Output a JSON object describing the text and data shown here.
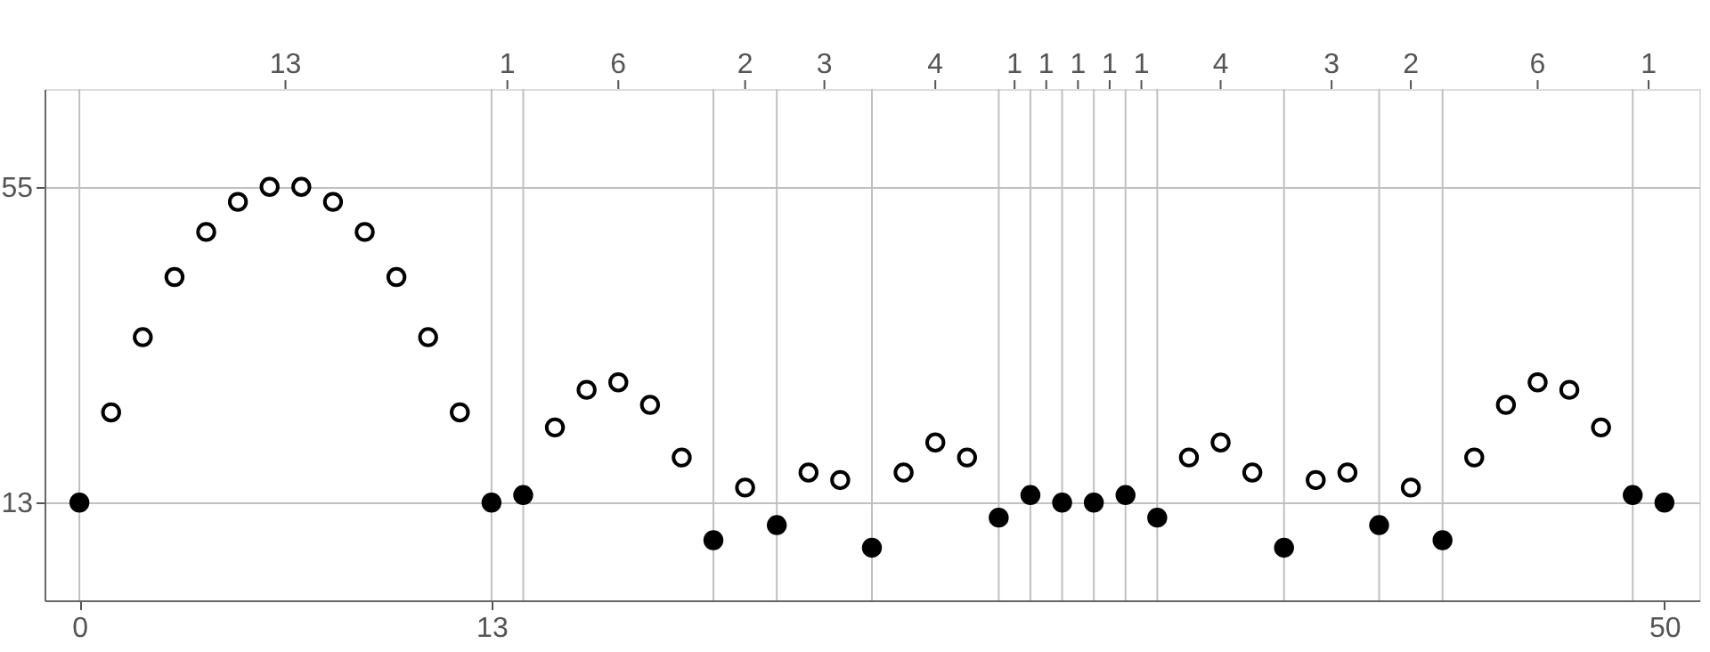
{
  "chart_data": {
    "type": "scatter",
    "series": [
      {
        "color": "#ffffff",
        "x": [
          1,
          2,
          3,
          4,
          5,
          6,
          7,
          8,
          9,
          10,
          11,
          12,
          15,
          16,
          17,
          18,
          19,
          21,
          23,
          24,
          26,
          27,
          28,
          35,
          36,
          37,
          39,
          40,
          42,
          44,
          45,
          46,
          47,
          48
        ],
        "values": [
          25,
          35,
          43,
          49,
          53,
          55,
          55,
          53,
          49,
          43,
          35,
          25,
          23,
          28,
          29,
          26,
          19,
          15,
          17,
          16,
          17,
          21,
          19,
          19,
          21,
          17,
          16,
          17,
          15,
          19,
          26,
          29,
          28,
          23
        ]
      },
      {
        "color": "#000000",
        "x": [
          0,
          13,
          14,
          20,
          22,
          25,
          29,
          30,
          31,
          32,
          33,
          34,
          38,
          41,
          43,
          49,
          50
        ],
        "values": [
          13,
          13,
          14,
          8,
          10,
          7,
          11,
          14,
          13,
          13,
          14,
          11,
          7,
          10,
          8,
          14,
          13
        ]
      }
    ],
    "marker": "circle",
    "xlim": [
      -1.1,
      51.1
    ],
    "ylim": [
      0,
      68
    ],
    "xticks": [
      0,
      13,
      50
    ],
    "yticks": [
      13,
      55
    ],
    "annotations": [
      "13",
      "1",
      "6",
      "2",
      "3",
      "4",
      "1",
      "1",
      "1",
      "1",
      "1",
      "4",
      "3",
      "2",
      "6",
      "1"
    ],
    "grid": "y",
    "ref_lines": [
      {
        "axis": "x",
        "value": 0,
        "color": "#c0c0c0"
      },
      {
        "axis": "x",
        "value": 13,
        "color": "#c0c0c0"
      },
      {
        "axis": "x",
        "value": 14,
        "color": "#c0c0c0"
      },
      {
        "axis": "x",
        "value": 20,
        "color": "#c0c0c0"
      },
      {
        "axis": "x",
        "value": 22,
        "color": "#c0c0c0"
      },
      {
        "axis": "x",
        "value": 25,
        "color": "#c0c0c0"
      },
      {
        "axis": "x",
        "value": 29,
        "color": "#c0c0c0"
      },
      {
        "axis": "x",
        "value": 30,
        "color": "#c0c0c0"
      },
      {
        "axis": "x",
        "value": 31,
        "color": "#c0c0c0"
      },
      {
        "axis": "x",
        "value": 32,
        "color": "#c0c0c0"
      },
      {
        "axis": "x",
        "value": 33,
        "color": "#c0c0c0"
      },
      {
        "axis": "x",
        "value": 34,
        "color": "#c0c0c0"
      },
      {
        "axis": "x",
        "value": 38,
        "color": "#c0c0c0"
      },
      {
        "axis": "x",
        "value": 41,
        "color": "#c0c0c0"
      },
      {
        "axis": "x",
        "value": 43,
        "color": "#c0c0c0"
      },
      {
        "axis": "x",
        "value": 49,
        "color": "#c0c0c0"
      }
    ]
  }
}
